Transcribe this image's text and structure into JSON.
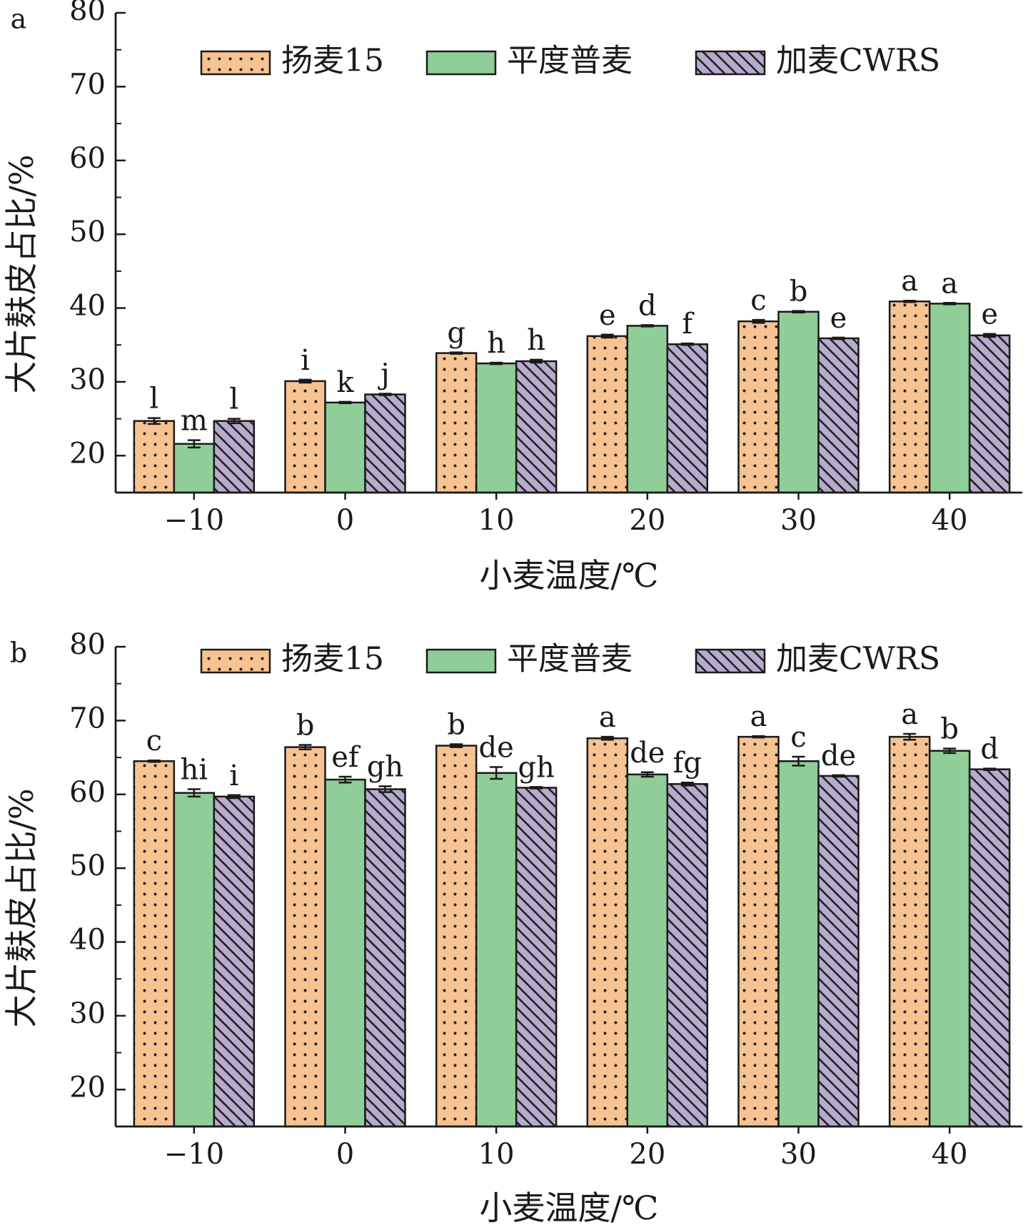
{
  "colors": {
    "yangmai15": "#f7c392",
    "pingdu": "#8fce99",
    "cwrs": "#b7abcd",
    "axis": "#1a1a1a"
  },
  "chart_data": [
    {
      "type": "bar",
      "panel_label": "a",
      "xlabel": "小麦温度/℃",
      "ylabel": "大片麸皮占比/%",
      "ylim": [
        15,
        80
      ],
      "yticks": [
        "20",
        "30",
        "40",
        "50",
        "60",
        "70",
        "80"
      ],
      "categories": [
        "−10",
        "0",
        "10",
        "20",
        "30",
        "40"
      ],
      "legend_position": "top",
      "series": [
        {
          "name": "扬麦15",
          "values": [
            24.7,
            30.1,
            33.9,
            36.2,
            38.2,
            40.9
          ],
          "errors": [
            0.4,
            0.2,
            0.1,
            0.2,
            0.2,
            0.1
          ],
          "labels": [
            "l",
            "i",
            "g",
            "e",
            "c",
            "a"
          ]
        },
        {
          "name": "平度普麦",
          "values": [
            21.6,
            27.2,
            32.5,
            37.6,
            39.5,
            40.6
          ],
          "errors": [
            0.5,
            0.1,
            0.1,
            0.1,
            0.1,
            0.1
          ],
          "labels": [
            "m",
            "k",
            "h",
            "d",
            "b",
            "a"
          ]
        },
        {
          "name": "加麦CWRS",
          "values": [
            24.7,
            28.3,
            32.8,
            35.1,
            35.9,
            36.3
          ],
          "errors": [
            0.3,
            0.1,
            0.2,
            0.1,
            0.1,
            0.2
          ],
          "labels": [
            "l",
            "j",
            "h",
            "f",
            "e",
            "e"
          ]
        }
      ]
    },
    {
      "type": "bar",
      "panel_label": "b",
      "xlabel": "小麦温度/℃",
      "ylabel": "大片麸皮占比/%",
      "ylim": [
        15,
        80
      ],
      "yticks": [
        "20",
        "30",
        "40",
        "50",
        "60",
        "70",
        "80"
      ],
      "categories": [
        "−10",
        "0",
        "10",
        "20",
        "30",
        "40"
      ],
      "legend_position": "top",
      "series": [
        {
          "name": "扬麦15",
          "values": [
            64.5,
            66.4,
            66.6,
            67.6,
            67.8,
            67.8
          ],
          "errors": [
            0.1,
            0.3,
            0.2,
            0.2,
            0.1,
            0.4
          ],
          "labels": [
            "c",
            "b",
            "b",
            "a",
            "a",
            "a"
          ]
        },
        {
          "name": "平度普麦",
          "values": [
            60.2,
            62.0,
            62.9,
            62.7,
            64.5,
            65.9
          ],
          "errors": [
            0.5,
            0.4,
            0.8,
            0.3,
            0.6,
            0.3
          ],
          "labels": [
            "hi",
            "ef",
            "de",
            "de",
            "c",
            "b"
          ]
        },
        {
          "name": "加麦CWRS",
          "values": [
            59.7,
            60.7,
            60.9,
            61.4,
            62.5,
            63.4
          ],
          "errors": [
            0.2,
            0.4,
            0.1,
            0.2,
            0.1,
            0.1
          ],
          "labels": [
            "i",
            "gh",
            "gh",
            "fg",
            "de",
            "d"
          ]
        }
      ]
    }
  ]
}
